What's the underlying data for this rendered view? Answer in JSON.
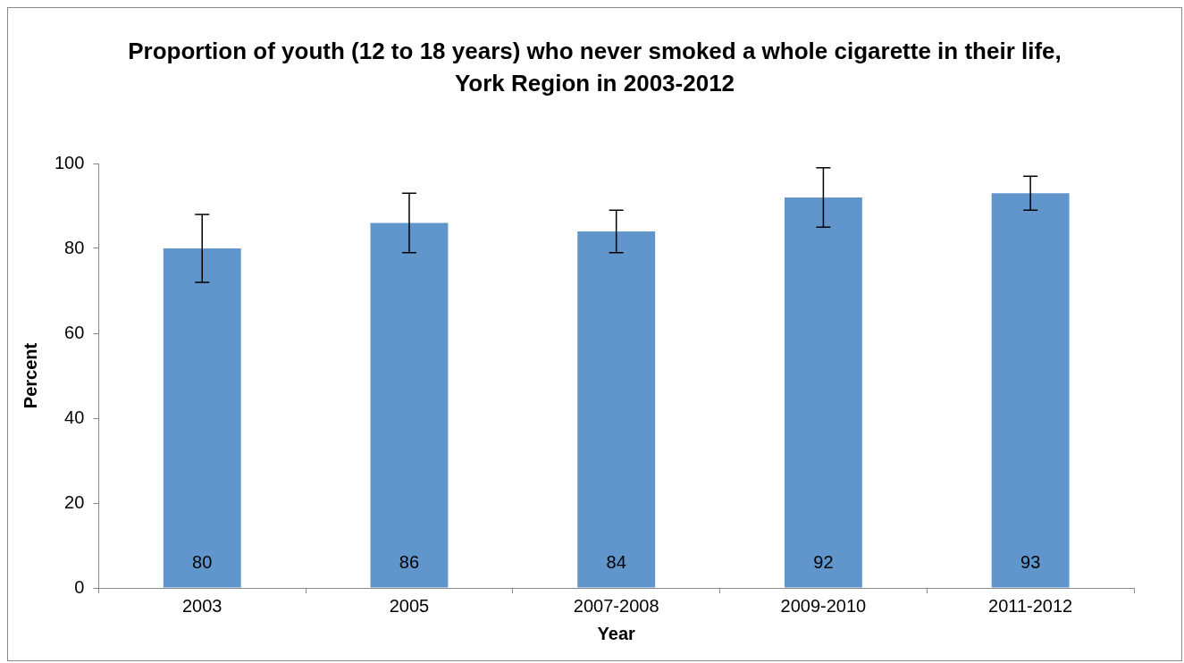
{
  "chart_data": {
    "type": "bar",
    "title": "Proportion of youth  (12 to 18 years) who never smoked a whole cigarette in their life, York Region in 2003-2012",
    "xlabel": "Year",
    "ylabel": "Percent",
    "categories": [
      "2003",
      "2005",
      "2007-2008",
      "2009-2010",
      "2011-2012"
    ],
    "values": [
      80,
      86,
      84,
      92,
      93
    ],
    "errors": [
      [
        72,
        88
      ],
      [
        79,
        93
      ],
      [
        79,
        89
      ],
      [
        85,
        99
      ],
      [
        89,
        97
      ]
    ],
    "color": "#6096cc",
    "ylim": [
      0,
      100
    ],
    "yticks": [
      0,
      20,
      40,
      60,
      80,
      100
    ],
    "grid": false,
    "legend": false,
    "data_labels": true
  }
}
